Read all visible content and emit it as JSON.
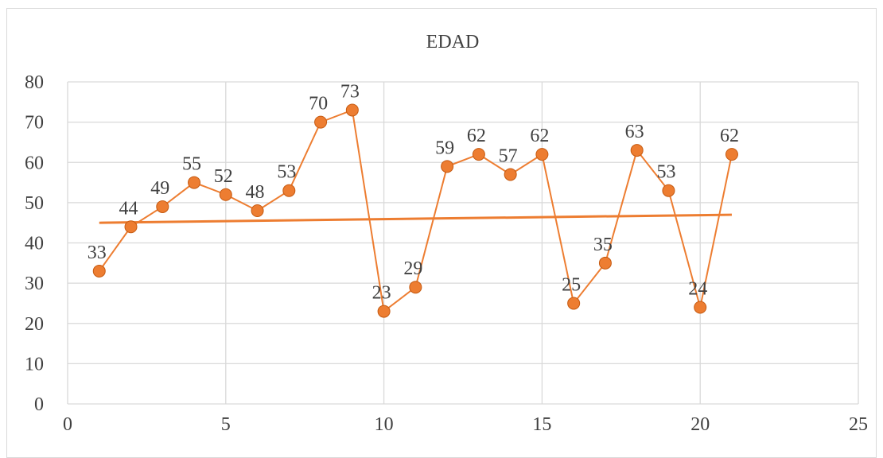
{
  "chart_data": {
    "type": "scatter",
    "title": "EDAD",
    "xlabel": "",
    "ylabel": "",
    "xlim": [
      0,
      25
    ],
    "ylim": [
      0,
      80
    ],
    "x_ticks": [
      0,
      5,
      10,
      15,
      20,
      25
    ],
    "y_ticks": [
      0,
      10,
      20,
      30,
      40,
      50,
      60,
      70,
      80
    ],
    "grid": true,
    "colors": {
      "series": "#ed7d31",
      "grid": "#d9d9d9",
      "text": "#404040"
    },
    "series": [
      {
        "x": [
          1,
          2,
          3,
          4,
          5,
          6,
          7,
          8,
          9,
          10,
          11,
          12,
          13,
          14,
          15,
          16,
          17,
          18,
          19,
          20,
          21
        ],
        "y": [
          33,
          44,
          49,
          55,
          52,
          48,
          53,
          70,
          73,
          23,
          29,
          59,
          62,
          57,
          62,
          25,
          35,
          63,
          53,
          24,
          62
        ],
        "markers": true,
        "lines": true,
        "data_labels": true
      }
    ],
    "trendline": {
      "type": "linear",
      "x": [
        1,
        21
      ],
      "y": [
        45,
        47
      ]
    }
  }
}
